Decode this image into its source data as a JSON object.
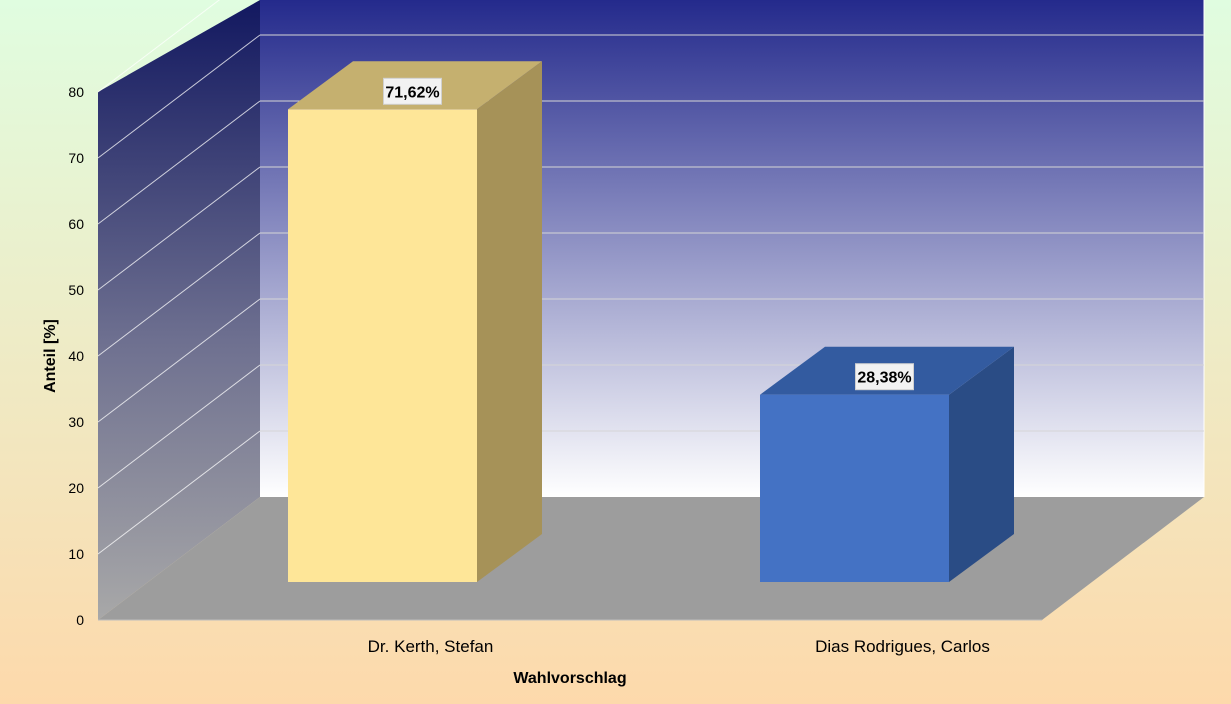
{
  "chart_data": {
    "type": "bar",
    "style": "3d-column",
    "categories": [
      "Dr. Kerth, Stefan",
      "Dias Rodrigues, Carlos"
    ],
    "values": [
      71.62,
      28.38
    ],
    "data_labels": [
      "71,62%",
      "28,38%"
    ],
    "xlabel": "Wahlvorschlag",
    "ylabel": "Anteil [%]",
    "ylim": [
      0,
      80
    ],
    "yticks": [
      "0",
      "10",
      "20",
      "30",
      "40",
      "50",
      "60",
      "70",
      "80"
    ],
    "grid": true,
    "legend": "none"
  },
  "colors": {
    "background_top": "#e0fde0",
    "background_bottom": "#fdd9ab",
    "wall_top": "#242a8c",
    "wall_bottom": "#ffffff",
    "floor": "#9d9d9d",
    "bar1_front": "#fee698",
    "bar1_top": "#c5b06f",
    "bar1_side": "#a69258",
    "bar2_front": "#4472c4",
    "bar2_top": "#335ba0",
    "bar2_side": "#2a4c85"
  }
}
